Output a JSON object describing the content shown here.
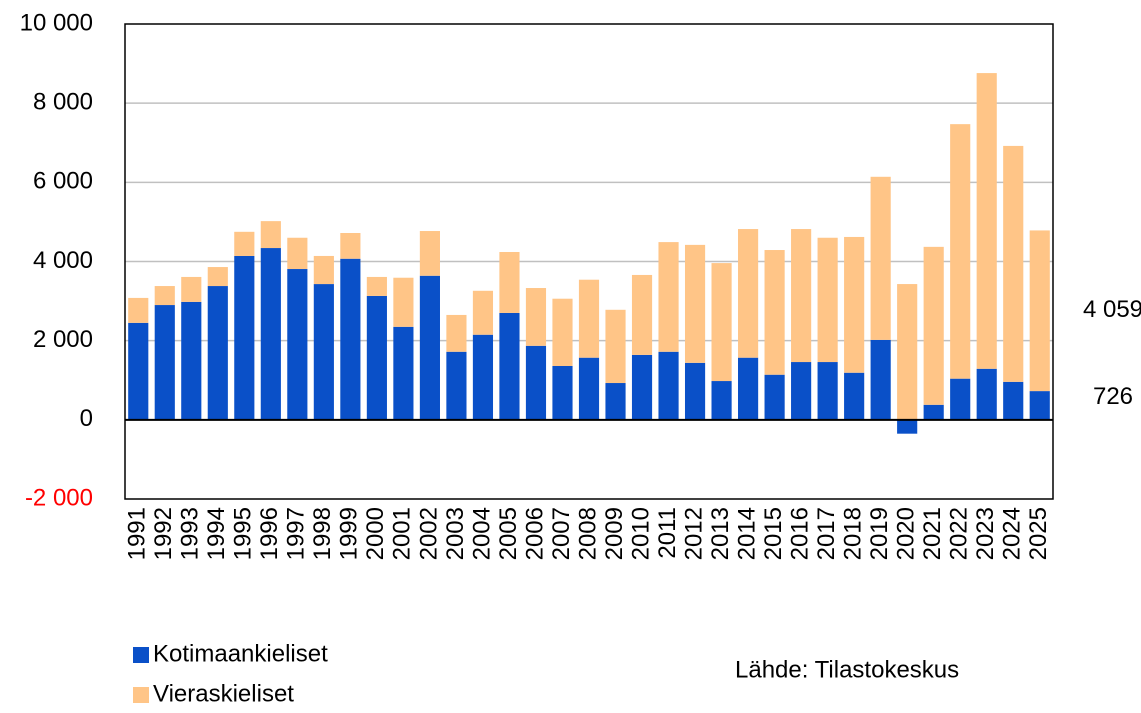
{
  "chart_data": {
    "type": "stacked_bar",
    "categories": [
      "1991",
      "1992",
      "1993",
      "1994",
      "1995",
      "1996",
      "1997",
      "1998",
      "1999",
      "2000",
      "2001",
      "2002",
      "2003",
      "2004",
      "2005",
      "2006",
      "2007",
      "2008",
      "2009",
      "2010",
      "2011",
      "2012",
      "2013",
      "2014",
      "2015",
      "2016",
      "2017",
      "2018",
      "2019",
      "2020",
      "2021",
      "2022",
      "2023",
      "2024",
      "2025"
    ],
    "series": [
      {
        "name": "Kotimaankieliset",
        "color": "#0a50c8",
        "values": [
          2450,
          2900,
          2980,
          3380,
          4140,
          4340,
          3810,
          3430,
          4070,
          3130,
          2350,
          3640,
          1720,
          2150,
          2700,
          1870,
          1360,
          1570,
          930,
          1640,
          1720,
          1440,
          980,
          1570,
          1140,
          1460,
          1460,
          1190,
          2020,
          -350,
          380,
          1040,
          1290,
          960,
          726
        ],
        "last_label": "726"
      },
      {
        "name": "Vieraskieliset",
        "color": "#ffc587",
        "values": [
          630,
          480,
          630,
          480,
          610,
          680,
          790,
          710,
          650,
          480,
          1240,
          1130,
          930,
          1110,
          1540,
          1460,
          1700,
          1970,
          1850,
          2020,
          2770,
          2980,
          2980,
          3250,
          3150,
          3360,
          3140,
          3430,
          4120,
          3430,
          3990,
          6430,
          7470,
          5960,
          4059
        ],
        "last_label": "4 059"
      }
    ],
    "ylim": [
      -2000,
      10000
    ],
    "yticks": [
      {
        "value": -2000,
        "label": "-2 000"
      },
      0,
      {
        "value": 2000,
        "label": "2 000"
      },
      {
        "value": 4000,
        "label": "4 000"
      },
      {
        "value": 6000,
        "label": "6 000"
      },
      {
        "value": 8000,
        "label": "8 000"
      },
      {
        "value": 10000,
        "label": "10 000"
      }
    ],
    "negative_tick_color": "#ff0000",
    "grid": true,
    "source": "Lähde: Tilastokeskus"
  }
}
